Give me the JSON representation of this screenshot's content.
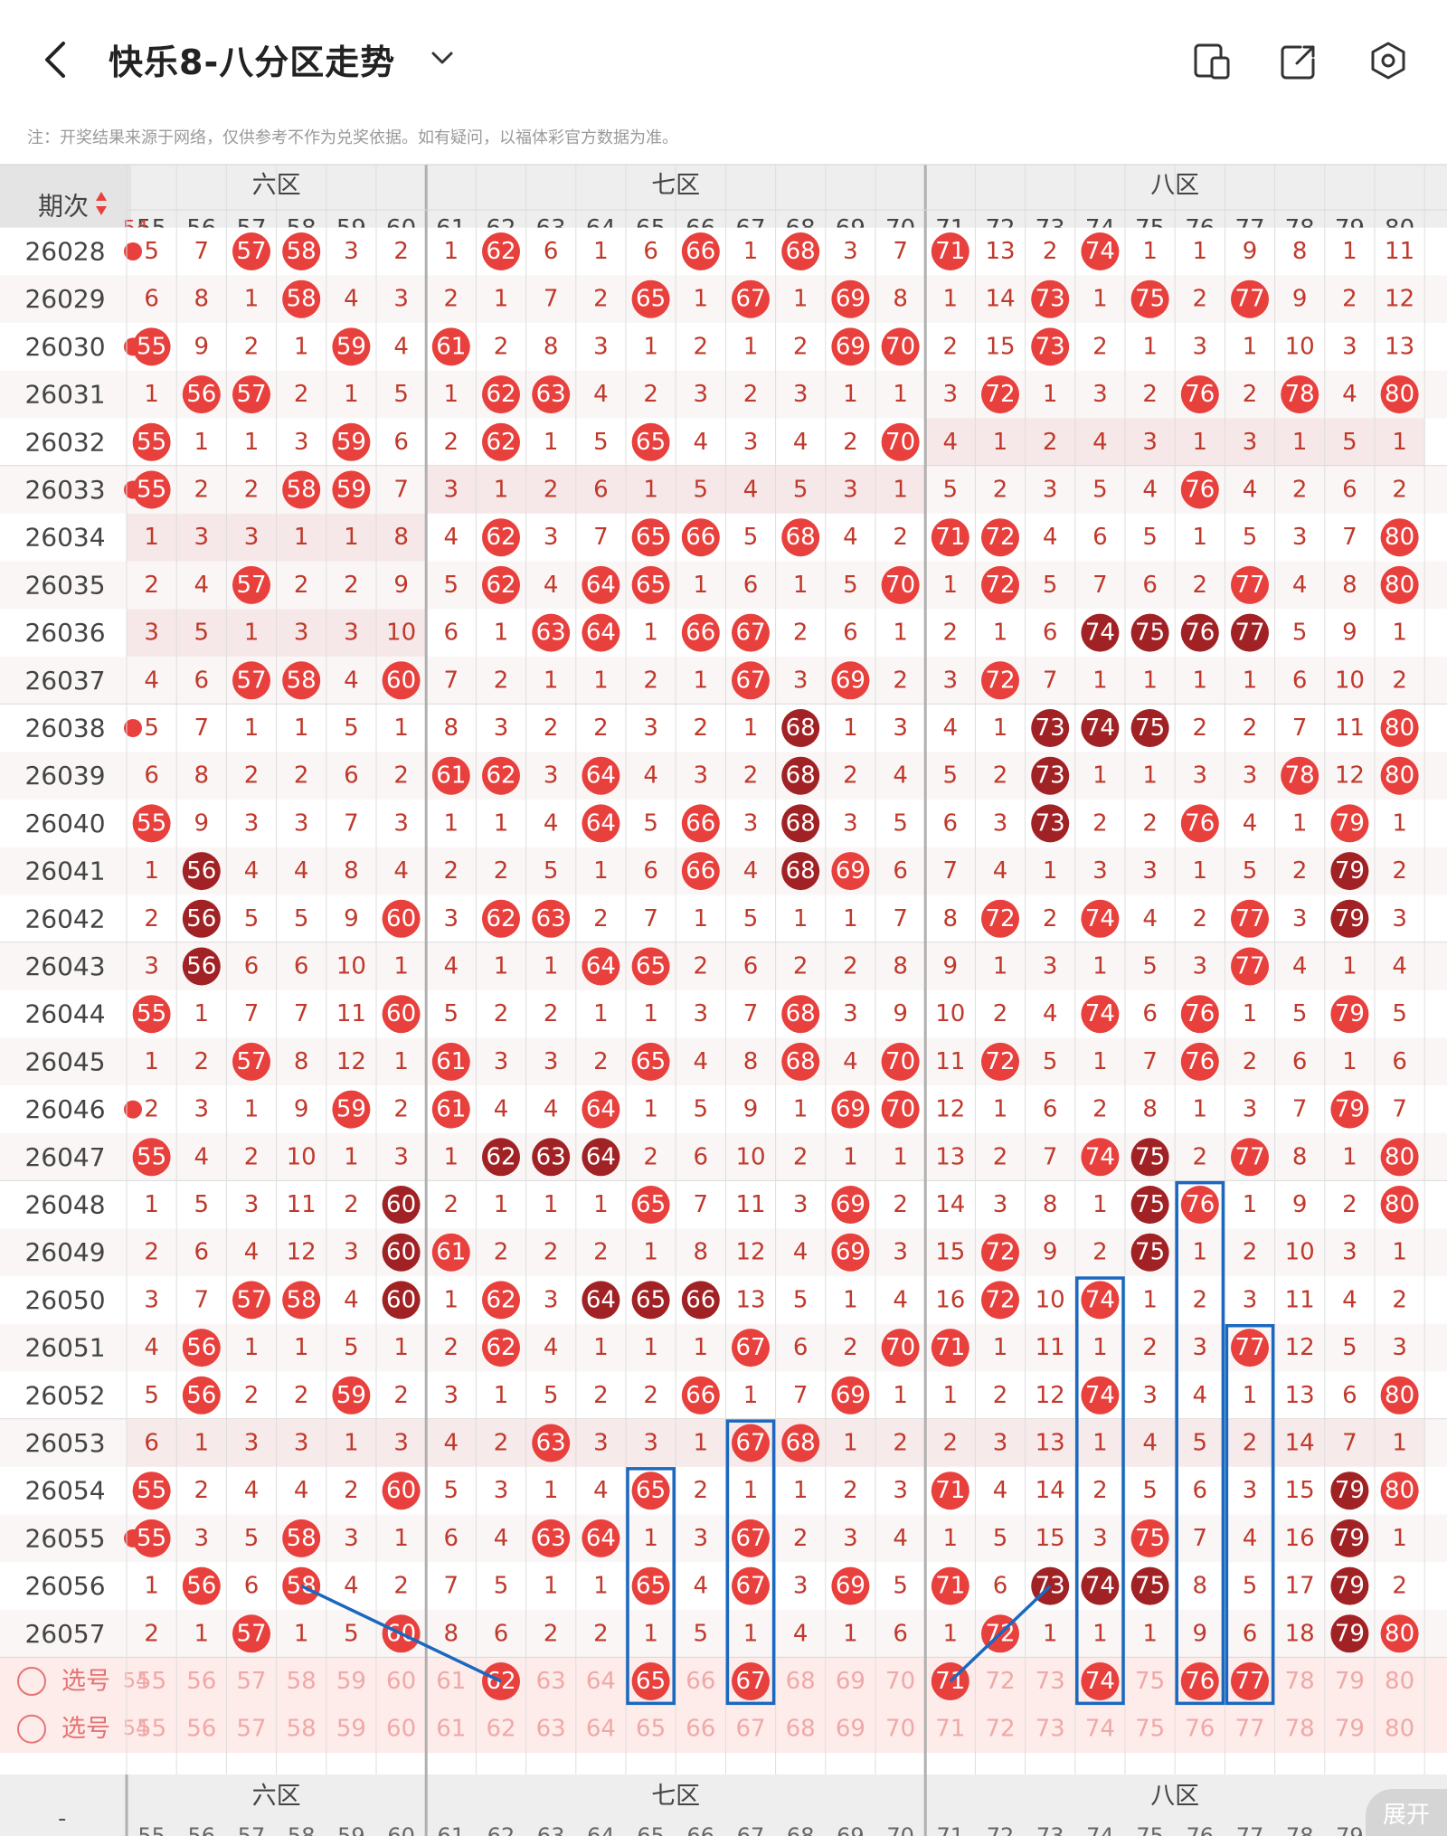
{
  "header": {
    "title": "快乐8-八分区走势",
    "back_icon": "back-arrow-icon",
    "dropdown_icon": "chevron-down-icon",
    "actions": [
      "split-screen-icon",
      "share-icon",
      "settings-icon"
    ]
  },
  "note": "注：开奖结果来源于网络，仅供参考不作为兑奖依据。如有疑问，以福体彩官方数据为准。",
  "table": {
    "period_header": "期次",
    "sort_icon": "sort-arrows-icon",
    "zones": [
      "六区",
      "七区",
      "八区"
    ],
    "columns": [
      55,
      56,
      57,
      58,
      59,
      60,
      61,
      62,
      63,
      64,
      65,
      66,
      67,
      68,
      69,
      70,
      71,
      72,
      73,
      74,
      75,
      76,
      77,
      78,
      79,
      80
    ],
    "partial_left_col": "54",
    "rows": [
      {
        "period": "26028",
        "hit_prev": true,
        "cells": [
          "5",
          "7",
          "57",
          "58",
          "3",
          "2",
          "1",
          "62",
          "6",
          "1",
          "6",
          "66",
          "1",
          "68",
          "3",
          "7",
          "71",
          "13",
          "2",
          "74",
          "1",
          "1",
          "9",
          "8",
          "1",
          "11"
        ]
      },
      {
        "period": "26029",
        "hit_prev": false,
        "cells": [
          "6",
          "8",
          "1",
          "58",
          "4",
          "3",
          "2",
          "1",
          "7",
          "2",
          "65",
          "1",
          "67",
          "1",
          "69",
          "8",
          "1",
          "14",
          "73",
          "1",
          "75",
          "2",
          "77",
          "9",
          "2",
          "12"
        ]
      },
      {
        "period": "26030",
        "hit_prev": true,
        "cells": [
          "55",
          "9",
          "2",
          "1",
          "59",
          "4",
          "61",
          "2",
          "8",
          "3",
          "1",
          "2",
          "1",
          "2",
          "69",
          "70",
          "2",
          "15",
          "73",
          "2",
          "1",
          "3",
          "1",
          "10",
          "3",
          "13"
        ]
      },
      {
        "period": "26031",
        "hit_prev": false,
        "cells": [
          "1",
          "56",
          "57",
          "2",
          "1",
          "5",
          "1",
          "62",
          "63",
          "4",
          "2",
          "3",
          "2",
          "3",
          "1",
          "1",
          "3",
          "72",
          "1",
          "3",
          "2",
          "76",
          "2",
          "78",
          "4",
          "80"
        ]
      },
      {
        "period": "26032",
        "hit_prev": false,
        "cells": [
          "55",
          "1",
          "1",
          "3",
          "59",
          "6",
          "2",
          "62",
          "1",
          "5",
          "65",
          "4",
          "3",
          "4",
          "2",
          "70",
          "4",
          "1",
          "2",
          "4",
          "3",
          "1",
          "3",
          "1",
          "5",
          "1"
        ]
      },
      {
        "period": "26033",
        "hit_prev": true,
        "cells": [
          "55",
          "2",
          "2",
          "58",
          "59",
          "7",
          "3",
          "1",
          "2",
          "6",
          "1",
          "5",
          "4",
          "5",
          "3",
          "1",
          "5",
          "2",
          "3",
          "5",
          "4",
          "76",
          "4",
          "2",
          "6",
          "2"
        ]
      },
      {
        "period": "26034",
        "hit_prev": false,
        "cells": [
          "1",
          "3",
          "3",
          "1",
          "1",
          "8",
          "4",
          "62",
          "3",
          "7",
          "65",
          "66",
          "5",
          "68",
          "4",
          "2",
          "71",
          "72",
          "4",
          "6",
          "5",
          "1",
          "5",
          "3",
          "7",
          "80"
        ]
      },
      {
        "period": "26035",
        "hit_prev": false,
        "cells": [
          "2",
          "4",
          "57",
          "2",
          "2",
          "9",
          "5",
          "62",
          "4",
          "64",
          "65",
          "1",
          "6",
          "1",
          "5",
          "70",
          "1",
          "72",
          "5",
          "7",
          "6",
          "2",
          "77",
          "4",
          "8",
          "80"
        ]
      },
      {
        "period": "26036",
        "hit_prev": false,
        "cells": [
          "3",
          "5",
          "1",
          "3",
          "3",
          "10",
          "6",
          "1",
          "63",
          "64",
          "1",
          "66",
          "67",
          "2",
          "6",
          "1",
          "2",
          "1",
          "6",
          "74",
          "75",
          "76",
          "77",
          "5",
          "9",
          "1"
        ]
      },
      {
        "period": "26037",
        "hit_prev": false,
        "cells": [
          "4",
          "6",
          "57",
          "58",
          "4",
          "60",
          "7",
          "2",
          "1",
          "1",
          "2",
          "1",
          "67",
          "3",
          "69",
          "2",
          "3",
          "72",
          "7",
          "1",
          "1",
          "1",
          "1",
          "6",
          "10",
          "2"
        ]
      },
      {
        "period": "26038",
        "hit_prev": true,
        "cells": [
          "5",
          "7",
          "1",
          "1",
          "5",
          "1",
          "8",
          "3",
          "2",
          "2",
          "3",
          "2",
          "1",
          "68",
          "1",
          "3",
          "4",
          "1",
          "73",
          "74",
          "75",
          "2",
          "2",
          "7",
          "11",
          "80"
        ]
      },
      {
        "period": "26039",
        "hit_prev": false,
        "cells": [
          "6",
          "8",
          "2",
          "2",
          "6",
          "2",
          "61",
          "62",
          "3",
          "64",
          "4",
          "3",
          "2",
          "68",
          "2",
          "4",
          "5",
          "2",
          "73",
          "1",
          "1",
          "3",
          "3",
          "78",
          "12",
          "80"
        ]
      },
      {
        "period": "26040",
        "hit_prev": false,
        "cells": [
          "55",
          "9",
          "3",
          "3",
          "7",
          "3",
          "1",
          "1",
          "4",
          "64",
          "5",
          "66",
          "3",
          "68",
          "3",
          "5",
          "6",
          "3",
          "73",
          "2",
          "2",
          "76",
          "4",
          "1",
          "79",
          "1"
        ]
      },
      {
        "period": "26041",
        "hit_prev": false,
        "cells": [
          "1",
          "56",
          "4",
          "4",
          "8",
          "4",
          "2",
          "2",
          "5",
          "1",
          "6",
          "66",
          "4",
          "68",
          "69",
          "6",
          "7",
          "4",
          "1",
          "3",
          "3",
          "1",
          "5",
          "2",
          "79",
          "2"
        ]
      },
      {
        "period": "26042",
        "hit_prev": false,
        "cells": [
          "2",
          "56",
          "5",
          "5",
          "9",
          "60",
          "3",
          "62",
          "63",
          "2",
          "7",
          "1",
          "5",
          "1",
          "1",
          "7",
          "8",
          "72",
          "2",
          "74",
          "4",
          "2",
          "77",
          "3",
          "79",
          "3"
        ]
      },
      {
        "period": "26043",
        "hit_prev": false,
        "cells": [
          "3",
          "56",
          "6",
          "6",
          "10",
          "1",
          "4",
          "1",
          "1",
          "64",
          "65",
          "2",
          "6",
          "2",
          "2",
          "8",
          "9",
          "1",
          "3",
          "1",
          "5",
          "3",
          "77",
          "4",
          "1",
          "4"
        ]
      },
      {
        "period": "26044",
        "hit_prev": false,
        "cells": [
          "55",
          "1",
          "7",
          "7",
          "11",
          "60",
          "5",
          "2",
          "2",
          "1",
          "1",
          "3",
          "7",
          "68",
          "3",
          "9",
          "10",
          "2",
          "4",
          "74",
          "6",
          "76",
          "1",
          "5",
          "79",
          "5"
        ]
      },
      {
        "period": "26045",
        "hit_prev": false,
        "cells": [
          "1",
          "2",
          "57",
          "8",
          "12",
          "1",
          "61",
          "3",
          "3",
          "2",
          "65",
          "4",
          "8",
          "68",
          "4",
          "70",
          "11",
          "72",
          "5",
          "1",
          "7",
          "76",
          "2",
          "6",
          "1",
          "6"
        ]
      },
      {
        "period": "26046",
        "hit_prev": true,
        "cells": [
          "2",
          "3",
          "1",
          "9",
          "59",
          "2",
          "61",
          "4",
          "4",
          "64",
          "1",
          "5",
          "9",
          "1",
          "69",
          "70",
          "12",
          "1",
          "6",
          "2",
          "8",
          "1",
          "3",
          "7",
          "79",
          "7"
        ]
      },
      {
        "period": "26047",
        "hit_prev": false,
        "cells": [
          "55",
          "4",
          "2",
          "10",
          "1",
          "3",
          "1",
          "62",
          "63",
          "64",
          "2",
          "6",
          "10",
          "2",
          "1",
          "1",
          "13",
          "2",
          "7",
          "74",
          "75",
          "2",
          "77",
          "8",
          "1",
          "80"
        ]
      },
      {
        "period": "26048",
        "hit_prev": false,
        "cells": [
          "1",
          "5",
          "3",
          "11",
          "2",
          "60",
          "2",
          "1",
          "1",
          "1",
          "65",
          "7",
          "11",
          "3",
          "69",
          "2",
          "14",
          "3",
          "8",
          "1",
          "75",
          "76",
          "1",
          "9",
          "2",
          "80"
        ]
      },
      {
        "period": "26049",
        "hit_prev": false,
        "cells": [
          "2",
          "6",
          "4",
          "12",
          "3",
          "60",
          "61",
          "2",
          "2",
          "2",
          "1",
          "8",
          "12",
          "4",
          "69",
          "3",
          "15",
          "72",
          "9",
          "2",
          "75",
          "1",
          "2",
          "10",
          "3",
          "1"
        ]
      },
      {
        "period": "26050",
        "hit_prev": false,
        "cells": [
          "3",
          "7",
          "57",
          "58",
          "4",
          "60",
          "1",
          "62",
          "3",
          "64",
          "65",
          "66",
          "13",
          "5",
          "1",
          "4",
          "16",
          "72",
          "10",
          "74",
          "1",
          "2",
          "3",
          "11",
          "4",
          "2"
        ]
      },
      {
        "period": "26051",
        "hit_prev": false,
        "cells": [
          "4",
          "56",
          "1",
          "1",
          "5",
          "1",
          "2",
          "62",
          "4",
          "1",
          "1",
          "1",
          "67",
          "6",
          "2",
          "70",
          "71",
          "1",
          "11",
          "1",
          "2",
          "3",
          "77",
          "12",
          "5",
          "3"
        ]
      },
      {
        "period": "26052",
        "hit_prev": false,
        "cells": [
          "5",
          "56",
          "2",
          "2",
          "59",
          "2",
          "3",
          "1",
          "5",
          "2",
          "2",
          "66",
          "1",
          "7",
          "69",
          "1",
          "1",
          "2",
          "12",
          "74",
          "3",
          "4",
          "1",
          "13",
          "6",
          "80"
        ]
      },
      {
        "period": "26053",
        "hit_prev": false,
        "cells": [
          "6",
          "1",
          "3",
          "3",
          "1",
          "3",
          "4",
          "2",
          "63",
          "3",
          "3",
          "1",
          "67",
          "68",
          "1",
          "2",
          "2",
          "3",
          "13",
          "1",
          "4",
          "5",
          "2",
          "14",
          "7",
          "1"
        ]
      },
      {
        "period": "26054",
        "hit_prev": false,
        "cells": [
          "55",
          "2",
          "4",
          "4",
          "2",
          "60",
          "5",
          "3",
          "1",
          "4",
          "65",
          "2",
          "1",
          "1",
          "2",
          "3",
          "71",
          "4",
          "14",
          "2",
          "5",
          "6",
          "3",
          "15",
          "79",
          "80"
        ]
      },
      {
        "period": "26055",
        "hit_prev": true,
        "cells": [
          "55",
          "3",
          "5",
          "58",
          "3",
          "1",
          "6",
          "4",
          "63",
          "64",
          "1",
          "3",
          "67",
          "2",
          "3",
          "4",
          "1",
          "5",
          "15",
          "3",
          "75",
          "7",
          "4",
          "16",
          "79",
          "1"
        ]
      },
      {
        "period": "26056",
        "hit_prev": false,
        "cells": [
          "1",
          "56",
          "6",
          "58",
          "4",
          "2",
          "7",
          "5",
          "1",
          "1",
          "65",
          "4",
          "67",
          "3",
          "69",
          "5",
          "71",
          "6",
          "73",
          "74",
          "75",
          "8",
          "5",
          "17",
          "79",
          "2"
        ]
      },
      {
        "period": "26057",
        "hit_prev": false,
        "cells": [
          "2",
          "1",
          "57",
          "1",
          "5",
          "60",
          "8",
          "6",
          "2",
          "2",
          "1",
          "5",
          "1",
          "4",
          "1",
          "6",
          "1",
          "72",
          "1",
          "1",
          "1",
          "9",
          "6",
          "18",
          "79",
          "80"
        ]
      }
    ],
    "dark_balls": {
      "26029": [],
      "26033": [],
      "26036": [
        "74",
        "75",
        "76",
        "77"
      ],
      "26038": [
        "68",
        "73",
        "74",
        "75"
      ],
      "26039": [
        "68",
        "73"
      ],
      "26040": [
        "68",
        "73"
      ],
      "26041": [
        "56",
        "68",
        "79"
      ],
      "26042": [
        "56",
        "79"
      ],
      "26043": [
        "56"
      ],
      "26047": [
        "62",
        "63",
        "64",
        "75"
      ],
      "26048": [
        "60",
        "75"
      ],
      "26049": [
        "60",
        "75"
      ],
      "26050": [
        "60",
        "64",
        "65",
        "66"
      ],
      "26054": [
        "79"
      ],
      "26055": [
        "79"
      ],
      "26056": [
        "73",
        "74",
        "75",
        "79"
      ],
      "26057": [
        "79"
      ]
    },
    "pick_rows": [
      {
        "label": "选号",
        "selected": [
          "62",
          "65",
          "67",
          "71",
          "74",
          "76",
          "77"
        ]
      },
      {
        "label": "选号",
        "selected": []
      }
    ],
    "footer_zones": [
      "六区",
      "七区",
      "八区"
    ],
    "footer_dash": "-",
    "expand_label": "展开"
  },
  "colors": {
    "ball_red": "#e8403d",
    "ball_dark": "#a12225",
    "text_red": "#c0392b",
    "highlight_box": "#1a68c0"
  }
}
